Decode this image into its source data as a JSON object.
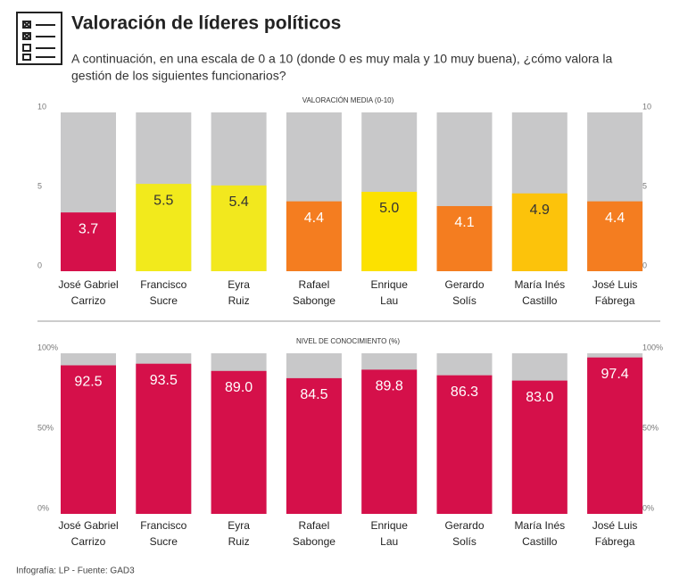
{
  "title": "Valoración de líderes políticos",
  "subtitle": [
    "A continuación, en una escala de 0 a 10 (donde 0 es muy mala y 10 muy buena), ¿cómo valora la",
    "gestión de los siguientes funcionarios?"
  ],
  "source": "Infografía: LP - Fuente: GAD3",
  "chart_data": [
    {
      "type": "bar",
      "title": "VALORACIÓN MEDIA (0-10)",
      "categories": [
        [
          "José Gabriel",
          "Carrizo"
        ],
        [
          "Francisco",
          "Sucre"
        ],
        [
          "Eyra",
          "Ruiz"
        ],
        [
          "Rafael",
          "Sabonge"
        ],
        [
          "Enrique",
          "Lau"
        ],
        [
          "Gerardo",
          "Solís"
        ],
        [
          "María Inés",
          "Castillo"
        ],
        [
          "José Luis",
          "Fábrega"
        ]
      ],
      "values": [
        3.7,
        5.5,
        5.4,
        4.4,
        5.0,
        4.1,
        4.9,
        4.4
      ],
      "value_labels": [
        "3.7",
        "5.5",
        "5.4",
        "4.4",
        "5.0",
        "4.1",
        "4.9",
        "4.4"
      ],
      "colors": [
        "#d5104a",
        "#f2ea1c",
        "#f2e81e",
        "#f47d20",
        "#fce100",
        "#f47d20",
        "#fcc30b",
        "#f47d20"
      ],
      "label_colors": [
        "#ffffff",
        "#333333",
        "#333333",
        "#ffffff",
        "#333333",
        "#ffffff",
        "#333333",
        "#ffffff"
      ],
      "background_color": "#c8c8c9",
      "ylim": [
        0,
        10
      ],
      "yticks": [
        0,
        5,
        10
      ]
    },
    {
      "type": "bar",
      "title": "NIVEL DE CONOCIMIENTO (%)",
      "categories": [
        [
          "José Gabriel",
          "Carrizo"
        ],
        [
          "Francisco",
          "Sucre"
        ],
        [
          "Eyra",
          "Ruiz"
        ],
        [
          "Rafael",
          "Sabonge"
        ],
        [
          "Enrique",
          "Lau"
        ],
        [
          "Gerardo",
          "Solís"
        ],
        [
          "María Inés",
          "Castillo"
        ],
        [
          "José Luis",
          "Fábrega"
        ]
      ],
      "values": [
        92.5,
        93.5,
        89.0,
        84.5,
        89.8,
        86.3,
        83.0,
        97.4
      ],
      "value_labels": [
        "92.5",
        "93.5",
        "89.0",
        "84.5",
        "89.8",
        "86.3",
        "83.0",
        "97.4"
      ],
      "colors": [
        "#d5104a",
        "#d5104a",
        "#d5104a",
        "#d5104a",
        "#d5104a",
        "#d5104a",
        "#d5104a",
        "#d5104a"
      ],
      "label_colors": [
        "#ffffff",
        "#ffffff",
        "#ffffff",
        "#ffffff",
        "#ffffff",
        "#ffffff",
        "#ffffff",
        "#ffffff"
      ],
      "background_color": "#c8c8c9",
      "ylim": [
        0,
        100
      ],
      "yticks": [
        {
          "value": 0,
          "label": "0%"
        },
        {
          "value": 50,
          "label": "50%"
        },
        {
          "value": 100,
          "label": "100%"
        }
      ]
    }
  ]
}
